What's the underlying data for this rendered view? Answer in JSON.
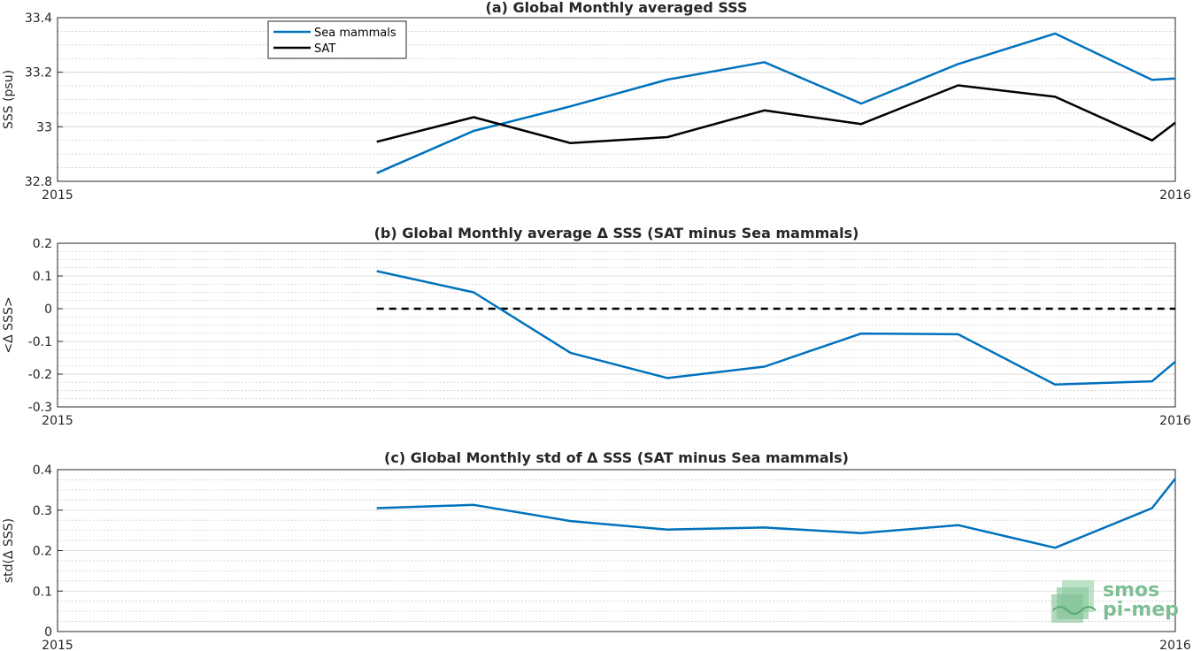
{
  "chart_data": [
    {
      "type": "line",
      "title": "(a) Global Monthly averaged SSS",
      "ylabel": "SSS (psu)",
      "xlabel": "",
      "x_start_label": "2015",
      "x_end_label": "2016",
      "ylim": [
        32.8,
        33.4
      ],
      "yticks": [
        32.8,
        33,
        33.2,
        33.4
      ],
      "ytick_labels": [
        "32.8",
        "33",
        "33.2",
        "33.4"
      ],
      "grid": true,
      "legend_position": "top-left",
      "x": [
        "2015-04",
        "2015-05",
        "2015-06",
        "2015-07",
        "2015-08",
        "2015-09",
        "2015-10",
        "2015-11",
        "2015-12",
        "2016-01"
      ],
      "series": [
        {
          "name": "Sea mammals",
          "color": "#0072BD",
          "values": [
            32.83,
            32.985,
            33.075,
            33.173,
            33.237,
            33.085,
            33.23,
            33.342,
            33.172,
            33.177
          ]
        },
        {
          "name": "SAT",
          "color": "#000000",
          "values": [
            32.945,
            33.035,
            32.94,
            32.962,
            33.06,
            33.01,
            33.152,
            33.11,
            32.95,
            33.015
          ]
        }
      ]
    },
    {
      "type": "line",
      "title": "(b) Global Monthly average Δ SSS (SAT minus Sea mammals)",
      "ylabel": "<Δ SSS>",
      "xlabel": "",
      "x_start_label": "2015",
      "x_end_label": "2016",
      "ylim": [
        -0.3,
        0.2
      ],
      "yticks": [
        -0.3,
        -0.2,
        -0.1,
        0,
        0.1,
        0.2
      ],
      "ytick_labels": [
        "-0.3",
        "-0.2",
        "-0.1",
        "0",
        "0.1",
        "0.2"
      ],
      "grid": true,
      "reference_line": 0,
      "x": [
        "2015-04",
        "2015-05",
        "2015-06",
        "2015-07",
        "2015-08",
        "2015-09",
        "2015-10",
        "2015-11",
        "2015-12",
        "2016-01"
      ],
      "series": [
        {
          "color": "#0072BD",
          "values": [
            0.115,
            0.05,
            -0.135,
            -0.212,
            -0.177,
            -0.076,
            -0.078,
            -0.232,
            -0.222,
            -0.162
          ]
        }
      ]
    },
    {
      "type": "line",
      "title": "(c) Global Monthly std of Δ SSS (SAT minus Sea mammals)",
      "ylabel": "std(Δ SSS)",
      "xlabel": "",
      "x_start_label": "2015",
      "x_end_label": "2016",
      "ylim": [
        0,
        0.4
      ],
      "yticks": [
        0,
        0.1,
        0.2,
        0.3,
        0.4
      ],
      "ytick_labels": [
        "0",
        "0.1",
        "0.2",
        "0.3",
        "0.4"
      ],
      "grid": true,
      "x": [
        "2015-04",
        "2015-05",
        "2015-06",
        "2015-07",
        "2015-08",
        "2015-09",
        "2015-10",
        "2015-11",
        "2015-12",
        "2016-01"
      ],
      "series": [
        {
          "color": "#0072BD",
          "values": [
            0.305,
            0.313,
            0.273,
            0.252,
            0.257,
            0.243,
            0.263,
            0.207,
            0.305,
            0.378
          ]
        }
      ]
    }
  ],
  "logo": {
    "line1": "smos",
    "line2": "pi-mep",
    "color": "#7fbf95"
  }
}
